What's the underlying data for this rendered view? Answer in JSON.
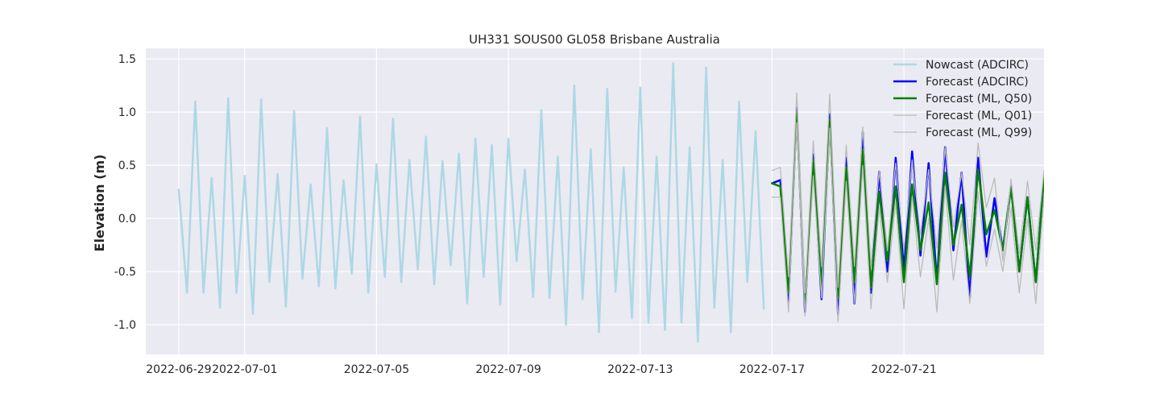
{
  "chart_data": {
    "type": "line",
    "title": "UH331 SOUS00 GL058 Brisbane Australia",
    "xlabel": "",
    "ylabel": "Elevation (m)",
    "xlim": [
      "2022-06-28T00:00",
      "2022-07-25T06:00"
    ],
    "ylim": [
      -1.28,
      1.6
    ],
    "x_ticks": [
      "2022-06-29",
      "2022-07-01",
      "2022-07-05",
      "2022-07-09",
      "2022-07-13",
      "2022-07-17",
      "2022-07-21"
    ],
    "y_ticks": [
      "-1.0",
      "-0.5",
      "0.0",
      "0.5",
      "1.0",
      "1.5"
    ],
    "y_tick_values": [
      -1.0,
      -0.5,
      0.0,
      0.5,
      1.0,
      1.5
    ],
    "grid": true,
    "background": "#eaeaf2",
    "legend_position": "top-right",
    "series": [
      {
        "name": "Nowcast (ADCIRC)",
        "color": "#add8e6",
        "line_width": 2.5,
        "x": [
          "2022-06-29T00:00",
          "2022-06-29T06:00",
          "2022-06-29T06:00",
          "2022-06-29T12:00",
          "2022-06-29T18:00",
          "2022-06-30T00:00",
          "2022-06-30T06:00",
          "2022-06-30T12:00",
          "2022-06-30T18:00",
          "2022-07-01T00:00",
          "2022-07-01T06:00",
          "2022-07-01T12:00",
          "2022-07-01T18:00",
          "2022-07-02T00:00",
          "2022-07-02T06:00",
          "2022-07-02T12:00",
          "2022-07-02T18:00",
          "2022-07-03T00:00",
          "2022-07-03T06:00",
          "2022-07-03T12:00",
          "2022-07-03T18:00",
          "2022-07-04T00:00",
          "2022-07-04T06:00",
          "2022-07-04T12:00",
          "2022-07-04T18:00",
          "2022-07-05T00:00",
          "2022-07-05T06:00",
          "2022-07-05T12:00",
          "2022-07-05T18:00",
          "2022-07-06T00:00",
          "2022-07-06T06:00",
          "2022-07-06T12:00",
          "2022-07-06T18:00",
          "2022-07-07T00:00",
          "2022-07-07T06:00",
          "2022-07-07T12:00",
          "2022-07-07T18:00",
          "2022-07-08T00:00",
          "2022-07-08T06:00",
          "2022-07-08T12:00",
          "2022-07-08T18:00",
          "2022-07-09T00:00",
          "2022-07-09T06:00",
          "2022-07-09T12:00",
          "2022-07-09T18:00",
          "2022-07-10T00:00",
          "2022-07-10T06:00",
          "2022-07-10T12:00",
          "2022-07-10T18:00",
          "2022-07-11T00:00",
          "2022-07-11T06:00",
          "2022-07-11T12:00",
          "2022-07-11T18:00",
          "2022-07-12T00:00",
          "2022-07-12T06:00",
          "2022-07-12T12:00",
          "2022-07-12T18:00",
          "2022-07-13T00:00",
          "2022-07-13T06:00",
          "2022-07-13T12:00",
          "2022-07-13T18:00",
          "2022-07-14T00:00",
          "2022-07-14T06:00",
          "2022-07-14T12:00",
          "2022-07-14T18:00",
          "2022-07-15T00:00",
          "2022-07-15T06:00",
          "2022-07-15T12:00",
          "2022-07-15T18:00",
          "2022-07-16T00:00",
          "2022-07-16T06:00",
          "2022-07-16T12:00",
          "2022-07-16T18:00"
        ],
        "y": [
          0.27,
          -0.7,
          -0.7,
          1.1,
          -0.7,
          0.38,
          -0.84,
          1.13,
          -0.7,
          0.4,
          -0.9,
          1.12,
          -0.6,
          0.42,
          -0.83,
          1.01,
          -0.57,
          0.32,
          -0.64,
          0.85,
          -0.66,
          0.36,
          -0.52,
          0.96,
          -0.7,
          0.51,
          -0.55,
          0.94,
          -0.6,
          0.55,
          -0.48,
          0.77,
          -0.62,
          0.54,
          -0.44,
          0.61,
          -0.8,
          0.75,
          -0.55,
          0.69,
          -0.81,
          0.75,
          -0.4,
          0.46,
          -0.74,
          1.02,
          -0.75,
          0.58,
          -1.0,
          1.25,
          -0.76,
          0.65,
          -1.07,
          1.22,
          -0.69,
          0.48,
          -0.94,
          1.23,
          -0.98,
          0.58,
          -1.05,
          1.46,
          -0.98,
          0.67,
          -1.16,
          1.42,
          -0.84,
          0.55,
          -1.07,
          1.1,
          -0.6,
          0.82,
          -0.85
        ]
      },
      {
        "name": "Forecast (ADCIRC)",
        "color": "#0000ff",
        "line_width": 2.5,
        "x": [
          "2022-07-17T00:00",
          "2022-07-17T06:00",
          "2022-07-17T12:00",
          "2022-07-17T18:00",
          "2022-07-18T00:00",
          "2022-07-18T06:00",
          "2022-07-18T12:00",
          "2022-07-18T18:00",
          "2022-07-19T00:00",
          "2022-07-19T06:00",
          "2022-07-19T12:00",
          "2022-07-19T18:00",
          "2022-07-20T00:00",
          "2022-07-20T06:00",
          "2022-07-20T12:00",
          "2022-07-20T18:00",
          "2022-07-21T00:00",
          "2022-07-21T06:00",
          "2022-07-21T12:00",
          "2022-07-21T18:00",
          "2022-07-22T00:00",
          "2022-07-22T06:00",
          "2022-07-22T12:00",
          "2022-07-22T18:00",
          "2022-07-23T00:00",
          "2022-07-23T06:00",
          "2022-07-23T12:00",
          "2022-07-23T18:00",
          "2022-07-24T00:00",
          "2022-07-24T06:00",
          "2022-07-24T12:00",
          "2022-07-24T18:00",
          "2022-07-25T00:00",
          "2022-07-25T06:00",
          "2022-07-25T12:00",
          "2022-07-25T18:00",
          "2022-07-26T00:00"
        ],
        "y": [
          0.33,
          0.36,
          -0.78,
          1.04,
          -0.88,
          0.6,
          -0.76,
          0.98,
          -0.9,
          0.57,
          -0.8,
          0.81,
          -0.7,
          0.44,
          -0.5,
          0.57,
          -0.5,
          0.63,
          -0.35,
          0.52,
          -0.6,
          0.67,
          -0.3,
          0.43,
          -0.75,
          0.57,
          -0.36,
          0.19,
          -0.3,
          0.3,
          -0.5,
          0.2,
          -0.6,
          0.4,
          -0.3,
          0.1,
          -0.4
        ]
      },
      {
        "name": "Forecast (ML, Q50)",
        "color": "#008000",
        "line_width": 2.5,
        "x": [
          "2022-07-17T00:00",
          "2022-07-17T06:00",
          "2022-07-17T12:00",
          "2022-07-17T18:00",
          "2022-07-18T00:00",
          "2022-07-18T06:00",
          "2022-07-18T12:00",
          "2022-07-18T18:00",
          "2022-07-19T00:00",
          "2022-07-19T06:00",
          "2022-07-19T12:00",
          "2022-07-19T18:00",
          "2022-07-20T00:00",
          "2022-07-20T06:00",
          "2022-07-20T12:00",
          "2022-07-20T18:00",
          "2022-07-21T00:00",
          "2022-07-21T06:00",
          "2022-07-21T12:00",
          "2022-07-21T18:00",
          "2022-07-22T00:00",
          "2022-07-22T06:00",
          "2022-07-22T12:00",
          "2022-07-22T18:00",
          "2022-07-23T00:00",
          "2022-07-23T06:00",
          "2022-07-23T12:00",
          "2022-07-23T18:00",
          "2022-07-24T00:00",
          "2022-07-24T06:00",
          "2022-07-24T12:00",
          "2022-07-24T18:00",
          "2022-07-25T00:00",
          "2022-07-25T06:00",
          "2022-07-25T12:00",
          "2022-07-25T18:00",
          "2022-07-26T00:00"
        ],
        "y": [
          0.33,
          0.3,
          -0.7,
          1.0,
          -0.8,
          0.55,
          -0.65,
          0.93,
          -0.75,
          0.48,
          -0.6,
          0.65,
          -0.65,
          0.25,
          -0.4,
          0.3,
          -0.6,
          0.32,
          -0.3,
          0.15,
          -0.62,
          0.43,
          -0.25,
          0.13,
          -0.55,
          0.46,
          -0.15,
          0.08,
          -0.3,
          0.3,
          -0.5,
          0.2,
          -0.6,
          0.4,
          -0.3,
          0.1,
          -0.4
        ]
      },
      {
        "name": "Forecast (ML, Q01)",
        "color": "#bbbbbb",
        "line_width": 1.3,
        "x": [
          "2022-07-17T00:00",
          "2022-07-17T06:00",
          "2022-07-17T12:00",
          "2022-07-17T18:00",
          "2022-07-18T00:00",
          "2022-07-18T06:00",
          "2022-07-18T12:00",
          "2022-07-18T18:00",
          "2022-07-19T00:00",
          "2022-07-19T06:00",
          "2022-07-19T12:00",
          "2022-07-19T18:00",
          "2022-07-20T00:00",
          "2022-07-20T06:00",
          "2022-07-20T12:00",
          "2022-07-20T18:00",
          "2022-07-21T00:00",
          "2022-07-21T06:00",
          "2022-07-21T12:00",
          "2022-07-21T18:00",
          "2022-07-22T00:00",
          "2022-07-22T06:00",
          "2022-07-22T12:00",
          "2022-07-22T18:00",
          "2022-07-23T00:00",
          "2022-07-23T06:00",
          "2022-07-23T12:00",
          "2022-07-23T18:00",
          "2022-07-24T00:00",
          "2022-07-24T06:00",
          "2022-07-24T12:00",
          "2022-07-24T18:00",
          "2022-07-25T00:00",
          "2022-07-25T06:00",
          "2022-07-25T12:00",
          "2022-07-25T18:00",
          "2022-07-26T00:00"
        ],
        "y": [
          0.2,
          0.2,
          -0.88,
          0.9,
          -0.92,
          0.4,
          -0.75,
          0.85,
          -0.97,
          0.35,
          -0.8,
          0.5,
          -0.85,
          0.1,
          -0.6,
          0.15,
          -0.85,
          0.2,
          -0.55,
          0.0,
          -0.88,
          0.3,
          -0.58,
          -0.02,
          -0.8,
          0.25,
          -0.45,
          -0.1,
          -0.5,
          0.1,
          -0.7,
          0.0,
          -0.8,
          0.2,
          -0.5,
          -0.1,
          -0.6
        ]
      },
      {
        "name": "Forecast (ML, Q99)",
        "color": "#bbbbbb",
        "line_width": 1.3,
        "x": [
          "2022-07-17T00:00",
          "2022-07-17T06:00",
          "2022-07-17T12:00",
          "2022-07-17T18:00",
          "2022-07-18T00:00",
          "2022-07-18T06:00",
          "2022-07-18T12:00",
          "2022-07-18T18:00",
          "2022-07-19T00:00",
          "2022-07-19T06:00",
          "2022-07-19T12:00",
          "2022-07-19T18:00",
          "2022-07-20T00:00",
          "2022-07-20T06:00",
          "2022-07-20T12:00",
          "2022-07-20T18:00",
          "2022-07-21T00:00",
          "2022-07-21T06:00",
          "2022-07-21T12:00",
          "2022-07-21T18:00",
          "2022-07-22T00:00",
          "2022-07-22T06:00",
          "2022-07-22T12:00",
          "2022-07-22T18:00",
          "2022-07-23T00:00",
          "2022-07-23T06:00",
          "2022-07-23T12:00",
          "2022-07-23T18:00",
          "2022-07-24T00:00",
          "2022-07-24T06:00",
          "2022-07-24T12:00",
          "2022-07-24T18:00",
          "2022-07-25T00:00",
          "2022-07-25T06:00",
          "2022-07-25T12:00",
          "2022-07-25T18:00",
          "2022-07-26T00:00"
        ],
        "y": [
          0.45,
          0.48,
          -0.55,
          1.18,
          -0.7,
          0.73,
          -0.45,
          1.17,
          -0.65,
          0.69,
          -0.45,
          0.86,
          -0.45,
          0.45,
          -0.3,
          0.52,
          -0.3,
          0.55,
          -0.15,
          0.46,
          -0.28,
          0.67,
          -0.08,
          0.43,
          -0.25,
          0.71,
          0.1,
          0.38,
          -0.4,
          0.37,
          -0.33,
          0.35,
          -0.3,
          0.45,
          -0.1,
          0.25,
          -0.2
        ]
      }
    ]
  }
}
